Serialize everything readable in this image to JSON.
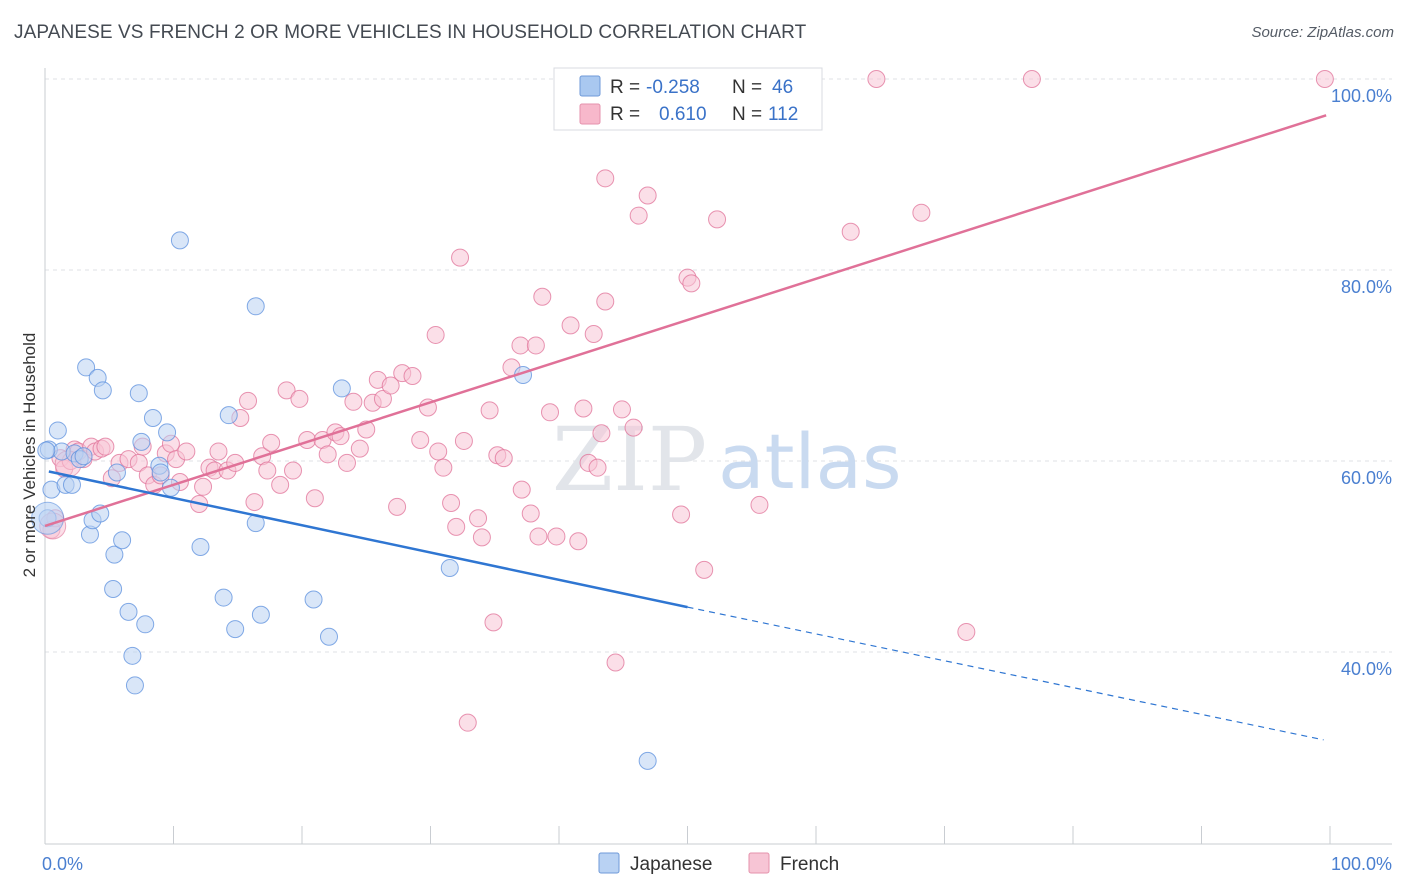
{
  "title": "JAPANESE VS FRENCH 2 OR MORE VEHICLES IN HOUSEHOLD CORRELATION CHART",
  "source": "Source: ZipAtlas.com",
  "watermark": {
    "part1": "ZIP",
    "part2": "atlas"
  },
  "legend": {
    "rows": [
      {
        "r_label": "R =",
        "r_value": "-0.258",
        "n_label": "N =",
        "n_value": "46",
        "color": "#a9c8f0"
      },
      {
        "r_label": "R =",
        "r_value": "0.610",
        "n_label": "N =",
        "n_value": "112",
        "color": "#f7b8cb"
      }
    ]
  },
  "bottom_legend": [
    "Japanese",
    "French"
  ],
  "chart_data": {
    "type": "scatter",
    "ylabel": "2 or more Vehicles in Household",
    "x_ticks": [
      "0.0%",
      "100.0%"
    ],
    "y_ticks": [
      "40.0%",
      "60.0%",
      "80.0%",
      "100.0%"
    ],
    "xlim": [
      0,
      100
    ],
    "ylim": [
      22,
      100
    ],
    "grid": true,
    "series": [
      {
        "name": "Japanese",
        "color": "#5b8fdd",
        "fill": "#b9d2f3",
        "points": [
          [
            0.2,
            54
          ],
          [
            0.3,
            61.2
          ],
          [
            0.5,
            57
          ],
          [
            1,
            63.2
          ],
          [
            1.3,
            61
          ],
          [
            1.6,
            57.5
          ],
          [
            2.1,
            57.5
          ],
          [
            2.3,
            60.8
          ],
          [
            2.7,
            60.2
          ],
          [
            3,
            60.5
          ],
          [
            3.2,
            69.8
          ],
          [
            3.5,
            52.3
          ],
          [
            3.7,
            53.8
          ],
          [
            4.1,
            68.7
          ],
          [
            4.3,
            54.5
          ],
          [
            4.5,
            67.4
          ],
          [
            5.3,
            46.6
          ],
          [
            5.4,
            50.2
          ],
          [
            5.6,
            58.8
          ],
          [
            6,
            51.7
          ],
          [
            6.5,
            44.2
          ],
          [
            6.8,
            39.6
          ],
          [
            7,
            36.5
          ],
          [
            7.3,
            67.1
          ],
          [
            7.5,
            62
          ],
          [
            7.8,
            42.9
          ],
          [
            8.4,
            64.5
          ],
          [
            8.9,
            59.5
          ],
          [
            9,
            58.8
          ],
          [
            9.5,
            63
          ],
          [
            9.8,
            57.2
          ],
          [
            10.5,
            83.1
          ],
          [
            12.1,
            51
          ],
          [
            13.9,
            45.7
          ],
          [
            14.3,
            64.8
          ],
          [
            14.8,
            42.4
          ],
          [
            16.4,
            76.2
          ],
          [
            16.4,
            53.5
          ],
          [
            16.8,
            43.9
          ],
          [
            20.9,
            45.5
          ],
          [
            22.1,
            41.6
          ],
          [
            23.1,
            67.6
          ],
          [
            31.5,
            48.8
          ],
          [
            37.2,
            69
          ],
          [
            46.9,
            28.6
          ],
          [
            0.1,
            61.1
          ]
        ],
        "trend": {
          "x0": 0.3,
          "y0": 58.9,
          "x1": 50,
          "y1": 44.7,
          "dash_to_x": 99.5,
          "dash_to_y": 30.8
        }
      },
      {
        "name": "French",
        "color": "#e07198",
        "fill": "#f7c5d5",
        "points": [
          [
            0.5,
            52.8
          ],
          [
            0.8,
            54
          ],
          [
            1.2,
            60.3
          ],
          [
            1.5,
            59.2
          ],
          [
            2,
            60
          ],
          [
            2.3,
            61.2
          ],
          [
            2.6,
            61
          ],
          [
            3,
            60.2
          ],
          [
            3.6,
            61.5
          ],
          [
            3.9,
            61
          ],
          [
            4.4,
            61.3
          ],
          [
            4.7,
            61.5
          ],
          [
            5.2,
            58.2
          ],
          [
            5.8,
            59.8
          ],
          [
            6.5,
            60.2
          ],
          [
            7.3,
            59.8
          ],
          [
            7.6,
            61.5
          ],
          [
            8,
            58.5
          ],
          [
            8.5,
            57.5
          ],
          [
            9,
            58.5
          ],
          [
            9.4,
            60.8
          ],
          [
            9.8,
            61.8
          ],
          [
            10.2,
            60.2
          ],
          [
            10.5,
            57.8
          ],
          [
            11,
            61
          ],
          [
            12,
            55.5
          ],
          [
            12.3,
            57.3
          ],
          [
            12.8,
            59.3
          ],
          [
            13.2,
            59
          ],
          [
            13.5,
            61
          ],
          [
            14.2,
            59
          ],
          [
            14.8,
            59.8
          ],
          [
            15.2,
            64.5
          ],
          [
            15.8,
            66.3
          ],
          [
            16.3,
            55.7
          ],
          [
            16.9,
            60.5
          ],
          [
            17.3,
            59
          ],
          [
            17.6,
            61.9
          ],
          [
            18.3,
            57.5
          ],
          [
            18.8,
            67.4
          ],
          [
            19.3,
            59
          ],
          [
            19.8,
            66.5
          ],
          [
            20.4,
            62.2
          ],
          [
            21,
            56.1
          ],
          [
            21.6,
            62.2
          ],
          [
            22,
            60.7
          ],
          [
            22.6,
            63
          ],
          [
            23,
            62.6
          ],
          [
            23.5,
            59.8
          ],
          [
            24,
            66.2
          ],
          [
            24.5,
            61.3
          ],
          [
            25,
            63.3
          ],
          [
            25.5,
            66.1
          ],
          [
            25.9,
            68.5
          ],
          [
            26.3,
            66.5
          ],
          [
            26.9,
            67.9
          ],
          [
            27.4,
            55.2
          ],
          [
            27.8,
            69.2
          ],
          [
            28.6,
            68.9
          ],
          [
            29.2,
            62.2
          ],
          [
            29.8,
            65.6
          ],
          [
            30.4,
            73.2
          ],
          [
            30.6,
            61
          ],
          [
            31,
            59.3
          ],
          [
            31.6,
            55.6
          ],
          [
            32,
            53.1
          ],
          [
            32.3,
            81.3
          ],
          [
            32.6,
            62.1
          ],
          [
            32.9,
            32.6
          ],
          [
            33.7,
            54
          ],
          [
            34,
            52
          ],
          [
            34.6,
            65.3
          ],
          [
            34.9,
            43.1
          ],
          [
            35.2,
            60.6
          ],
          [
            35.7,
            60.3
          ],
          [
            36.3,
            69.8
          ],
          [
            37.1,
            57
          ],
          [
            37,
            72.1
          ],
          [
            37.8,
            54.5
          ],
          [
            38.2,
            72.1
          ],
          [
            38.4,
            52.1
          ],
          [
            38.7,
            77.2
          ],
          [
            39.3,
            65.1
          ],
          [
            39.8,
            52.1
          ],
          [
            40.9,
            74.2
          ],
          [
            41.5,
            51.6
          ],
          [
            41.9,
            65.5
          ],
          [
            42.3,
            59.8
          ],
          [
            42.7,
            73.3
          ],
          [
            43,
            59.3
          ],
          [
            43.3,
            62.9
          ],
          [
            43.6,
            76.7
          ],
          [
            43.6,
            89.6
          ],
          [
            44.4,
            38.9
          ],
          [
            44.9,
            65.4
          ],
          [
            45.8,
            63.5
          ],
          [
            46.2,
            85.7
          ],
          [
            46.9,
            87.8
          ],
          [
            49.5,
            54.4
          ],
          [
            50,
            79.2
          ],
          [
            50.3,
            78.6
          ],
          [
            51.3,
            48.6
          ],
          [
            52.3,
            85.3
          ],
          [
            55.6,
            55.4
          ],
          [
            55.7,
            100
          ],
          [
            62.7,
            84
          ],
          [
            68.2,
            86
          ],
          [
            71.7,
            42.1
          ],
          [
            57.5,
            100
          ],
          [
            64.7,
            100
          ],
          [
            76.8,
            100
          ],
          [
            99.6,
            100
          ]
        ],
        "trend": {
          "x0": 0,
          "y0": 53.2,
          "x1": 99.7,
          "y1": 96.2
        }
      }
    ]
  }
}
